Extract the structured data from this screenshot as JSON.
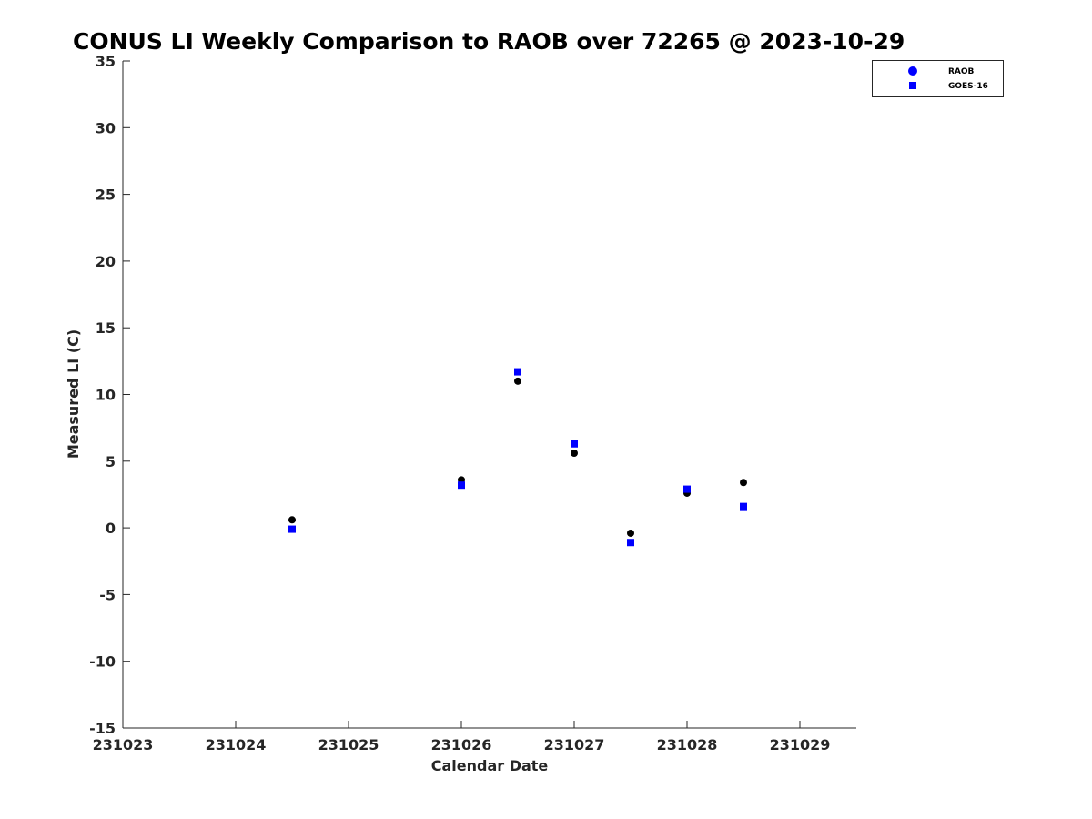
{
  "chart_data": {
    "type": "scatter",
    "title": "CONUS LI Weekly Comparison to RAOB over 72265 @ 2023-10-29",
    "xlabel": "Calendar Date",
    "ylabel": "Measured LI (C)",
    "xlim": [
      0,
      6.5
    ],
    "ylim": [
      -15,
      35
    ],
    "xticks": [
      0,
      1,
      2,
      3,
      4,
      5,
      6
    ],
    "xtick_labels": [
      "231023",
      "231024",
      "231025",
      "231026",
      "231027",
      "231028",
      "231029"
    ],
    "yticks": [
      -15,
      -10,
      -5,
      0,
      5,
      10,
      15,
      20,
      25,
      30,
      35
    ],
    "ytick_labels": [
      "-15",
      "-10",
      "-5",
      "0",
      "5",
      "10",
      "15",
      "20",
      "25",
      "30",
      "35"
    ],
    "grid": false,
    "legend_position": "top-right",
    "series": [
      {
        "name": "RAOB",
        "marker": "circle",
        "color": "#000000",
        "legend_color": "#0000ff",
        "x": [
          1.5,
          3.0,
          3.5,
          4.0,
          4.5,
          5.0,
          5.5
        ],
        "y": [
          0.6,
          3.6,
          11.0,
          5.6,
          -0.4,
          2.6,
          3.4
        ]
      },
      {
        "name": "GOES-16",
        "marker": "square",
        "color": "#0000ff",
        "legend_color": "#0000ff",
        "x": [
          1.5,
          3.0,
          3.5,
          4.0,
          4.5,
          5.0,
          5.5
        ],
        "y": [
          -0.1,
          3.2,
          11.7,
          6.3,
          -1.1,
          2.9,
          1.6
        ]
      }
    ]
  }
}
